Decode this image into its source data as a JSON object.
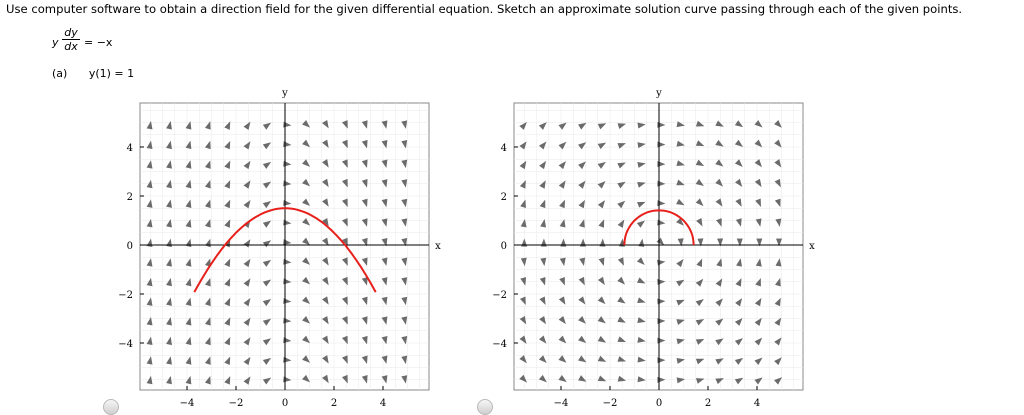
{
  "question": {
    "prompt": "Use computer software to obtain a direction field for the given differential equation. Sketch an approximate solution curve passing through each of the given points.",
    "equation_y": "y",
    "equation_num": "dy",
    "equation_den": "dx",
    "equation_rhs": "= −x",
    "part_label": "(a)",
    "part_condition": "y(1) = 1"
  },
  "plots": [
    {
      "name": "option-1",
      "y_axis_label": "y",
      "x_axis_label": "x",
      "x_ticks": [
        "−4",
        "−2",
        "0",
        "2",
        "4"
      ],
      "y_ticks": [
        "4",
        "2",
        "0",
        "−2",
        "−4"
      ],
      "field": "dy/dx = -x",
      "curve": "parabola y = 1.5 - x^2/4 from x = -3.7 to x = 3.7",
      "curve_color": "#e8201c"
    },
    {
      "name": "option-2",
      "y_axis_label": "y",
      "x_axis_label": "x",
      "x_ticks": [
        "−4",
        "−2",
        "0",
        "2",
        "4"
      ],
      "y_ticks": [
        "4",
        "2",
        "0",
        "−2",
        "−4"
      ],
      "field": "dy/dx = -x/y",
      "curve": "semicircle x^2 + y^2 = 2, y >= 0",
      "curve_color": "#e8201c"
    }
  ],
  "colors": {
    "arrow": "#6b6b6b",
    "curve": "#e8201c",
    "axis": "#000000",
    "grid": "#e8e8e8"
  }
}
